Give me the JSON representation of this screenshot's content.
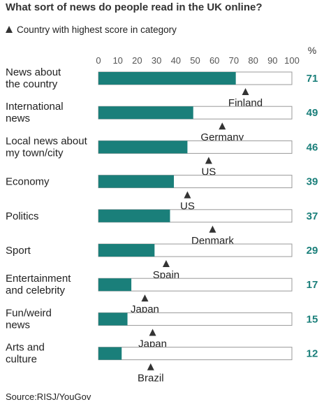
{
  "title": "What sort of news do people read in the UK online?",
  "legend": {
    "icon": "triangle-up-icon",
    "text": "Country with highest score in category"
  },
  "source": "Source:RISJ/YouGov",
  "colors": {
    "bar": "#1a7f7a",
    "value_text": "#1a7f7a",
    "marker": "#333333",
    "bar_border": "#999999"
  },
  "chart_data": {
    "type": "bar",
    "orientation": "horizontal",
    "unit": "%",
    "xlim": [
      0,
      100
    ],
    "xticks": [
      "0",
      "10",
      "20",
      "30",
      "40",
      "50",
      "60",
      "70",
      "80",
      "90",
      "100"
    ],
    "categories": [
      [
        "News about",
        "the country"
      ],
      [
        "International",
        "news"
      ],
      [
        "Local news about",
        "my town/city"
      ],
      [
        "Economy"
      ],
      [
        "Politics"
      ],
      [
        "Sport"
      ],
      [
        "Entertainment",
        "and celebrity"
      ],
      [
        "Fun/weird",
        "news"
      ],
      [
        "Arts and",
        "culture"
      ]
    ],
    "values": [
      71,
      49,
      46,
      39,
      37,
      29,
      17,
      15,
      12
    ],
    "highest": [
      {
        "country": "Finland",
        "value": 76
      },
      {
        "country": "Germany",
        "value": 64
      },
      {
        "country": "US",
        "value": 57
      },
      {
        "country": "US",
        "value": 46
      },
      {
        "country": "Denmark",
        "value": 59
      },
      {
        "country": "Spain",
        "value": 35
      },
      {
        "country": "Japan",
        "value": 24
      },
      {
        "country": "Japan",
        "value": 28
      },
      {
        "country": "Brazil",
        "value": 27
      }
    ]
  }
}
